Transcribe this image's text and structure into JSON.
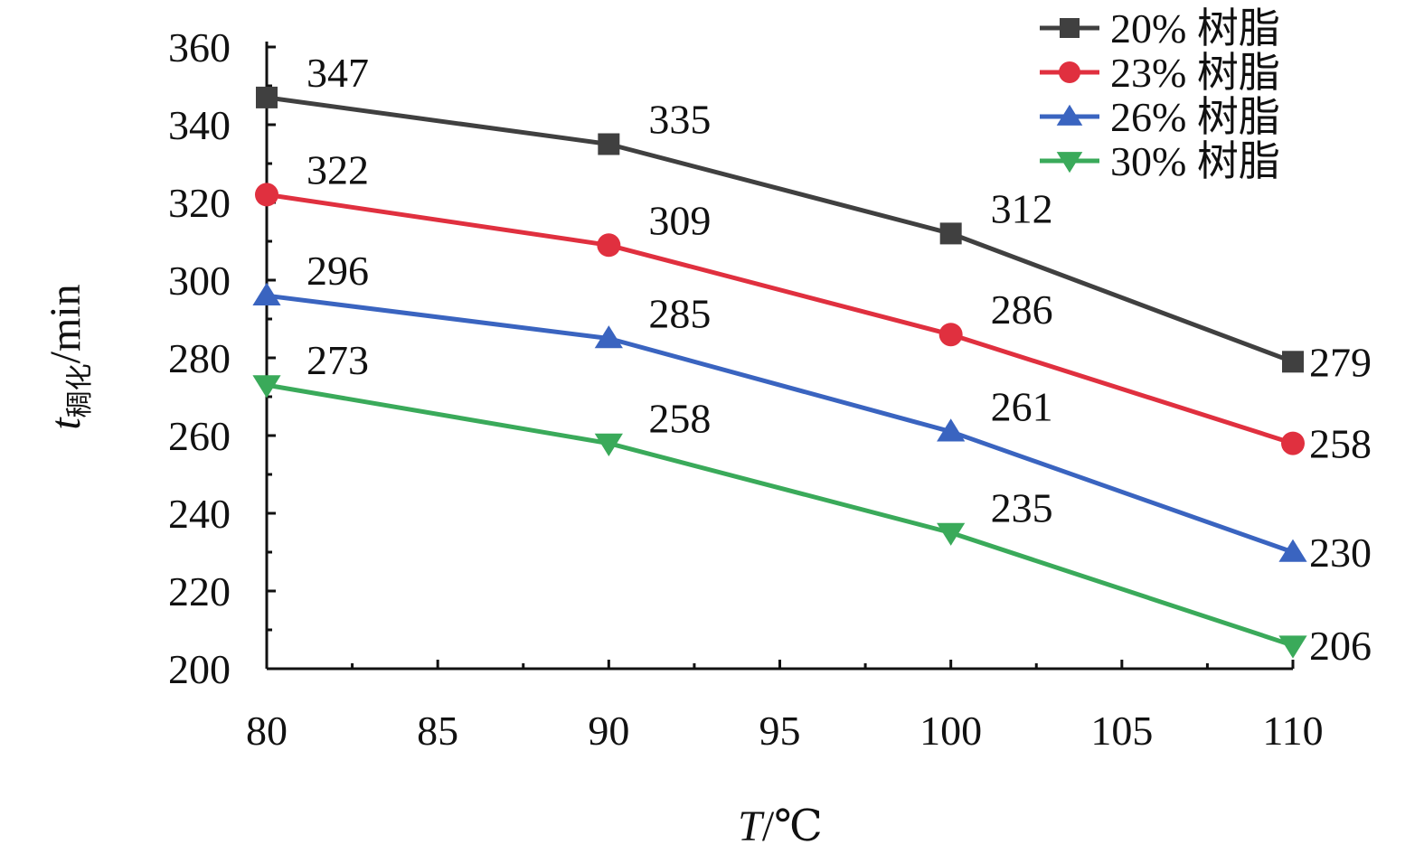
{
  "chart_data": {
    "type": "line",
    "title": "",
    "xlabel": {
      "main": "T",
      "unit": "/℃"
    },
    "ylabel": {
      "main": "t",
      "sub": "稠化",
      "unit": "/min"
    },
    "x": [
      80,
      90,
      100,
      110
    ],
    "xlim": [
      80,
      110
    ],
    "ylim": [
      200,
      360
    ],
    "x_ticks": [
      80,
      85,
      90,
      95,
      100,
      105,
      110
    ],
    "y_ticks": [
      200,
      220,
      240,
      260,
      280,
      300,
      320,
      340,
      360
    ],
    "grid": false,
    "legend_position": "top-right",
    "series": [
      {
        "name": "20% 树脂",
        "color": "#404040",
        "marker": "square",
        "values": [
          347,
          335,
          312,
          279
        ],
        "labels": [
          "347",
          "335",
          "312",
          "279"
        ]
      },
      {
        "name": "23% 树脂",
        "color": "#e0303f",
        "marker": "circle",
        "values": [
          322,
          309,
          286,
          258
        ],
        "labels": [
          "322",
          "309",
          "286",
          "258"
        ]
      },
      {
        "name": "26% 树脂",
        "color": "#3a64c0",
        "marker": "triangle-up",
        "values": [
          296,
          285,
          261,
          230
        ],
        "labels": [
          "296",
          "285",
          "261",
          "230"
        ]
      },
      {
        "name": "30% 树脂",
        "color": "#3aaa5a",
        "marker": "triangle-down",
        "values": [
          273,
          258,
          235,
          206
        ],
        "labels": [
          "273",
          "258",
          "235",
          "206"
        ]
      }
    ]
  }
}
